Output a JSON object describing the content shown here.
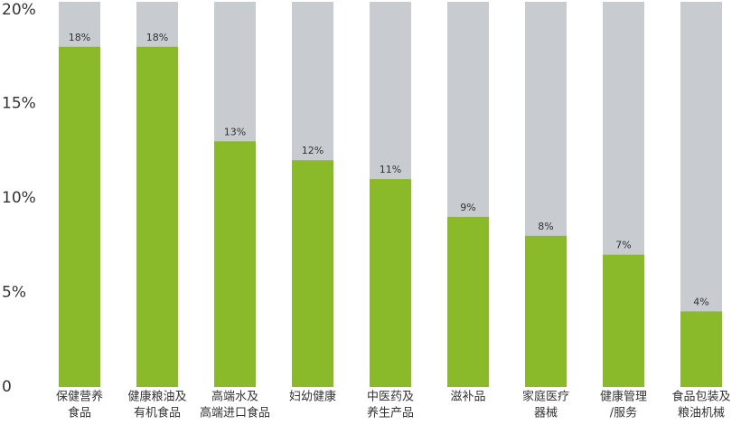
{
  "chart_data": {
    "type": "bar",
    "categories": [
      [
        "保健营养",
        "食品"
      ],
      [
        "健康粮油及",
        "有机食品"
      ],
      [
        "高端水及",
        "高端进口食品"
      ],
      [
        "妇幼健康"
      ],
      [
        "中医药及",
        "养生产品"
      ],
      [
        "滋补品"
      ],
      [
        "家庭医疗",
        "器械"
      ],
      [
        "健康管理",
        "/服务"
      ],
      [
        "食品包装及",
        "粮油机械"
      ]
    ],
    "values": [
      18,
      18,
      13,
      12,
      11,
      9,
      8,
      7,
      4
    ],
    "value_labels": [
      "18%",
      "18%",
      "13%",
      "12%",
      "11%",
      "9%",
      "8%",
      "7%",
      "4%"
    ],
    "color": "#8aba2a",
    "background_color": "#c8cbcf",
    "ylim": [
      0,
      20
    ],
    "yticks": [
      0,
      {
        "value": 5,
        "label": "5%"
      },
      {
        "value": 10,
        "label": "10%"
      },
      {
        "value": 15,
        "label": "15%"
      },
      {
        "value": 20,
        "label": "20%"
      }
    ]
  }
}
